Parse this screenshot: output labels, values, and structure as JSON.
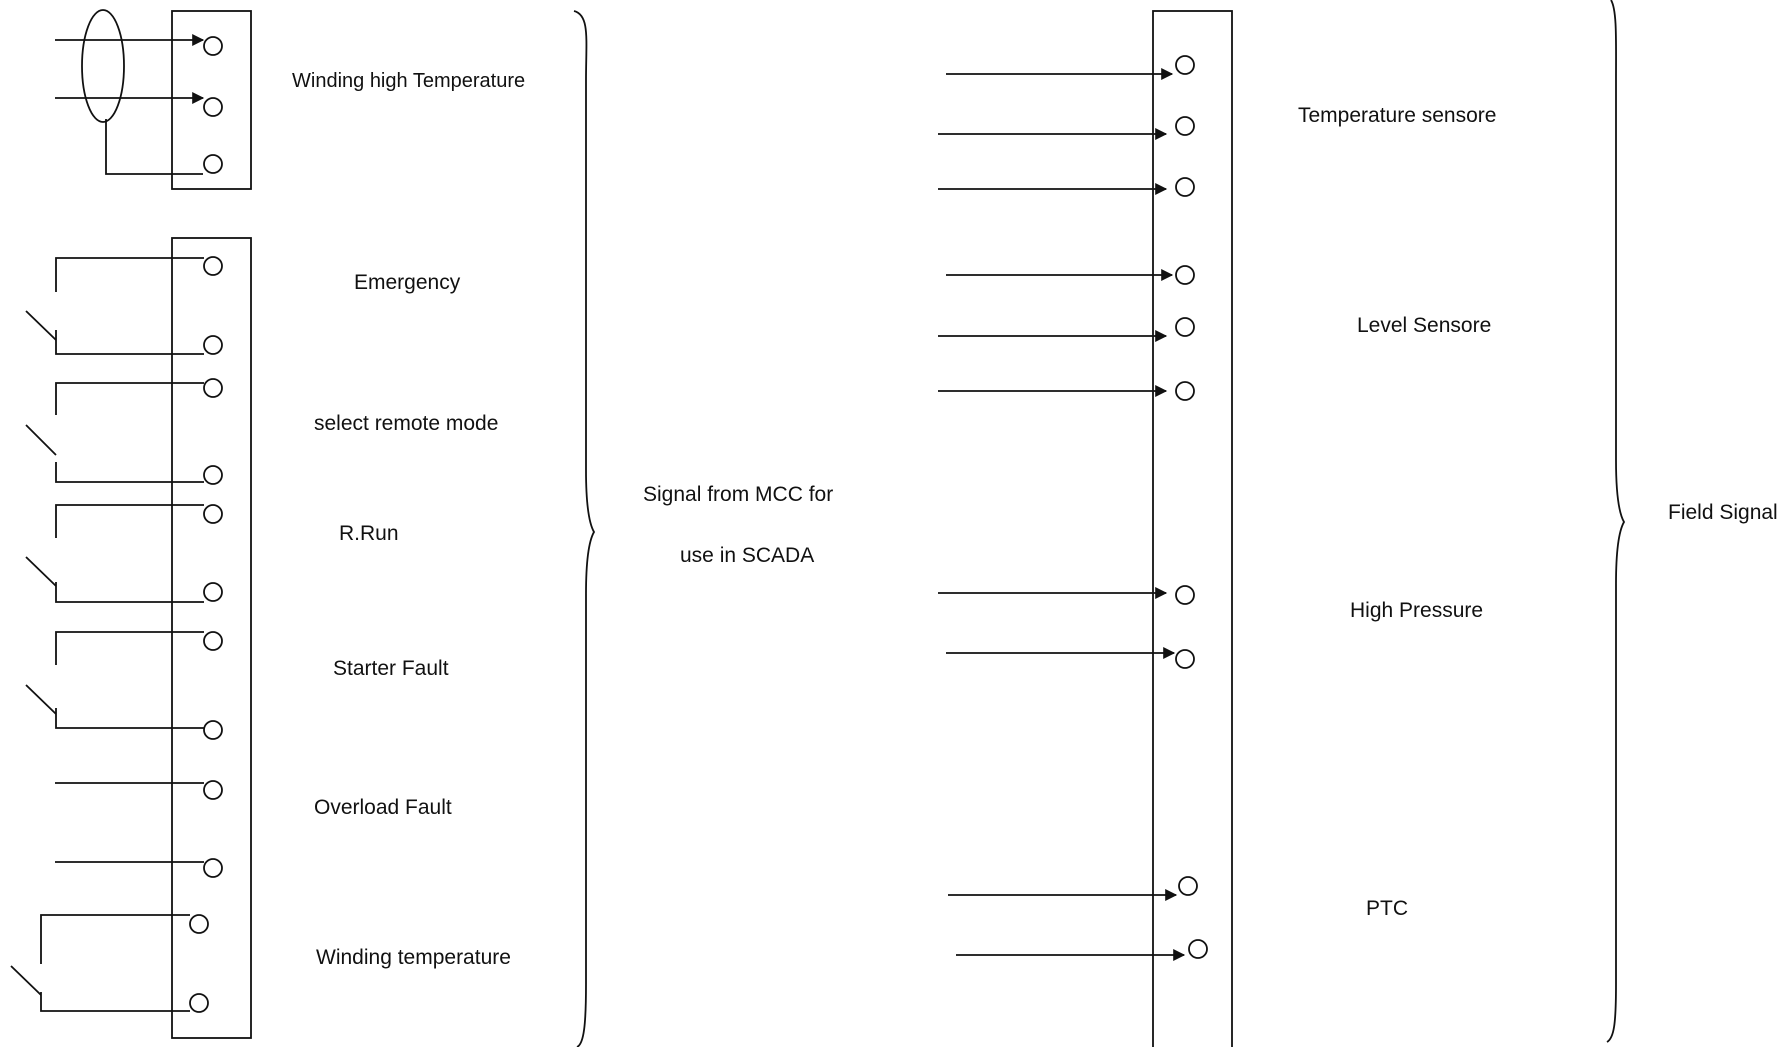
{
  "left_panel": {
    "winding_high_temperature": "Winding  high Temperature",
    "emergency": "Emergency",
    "select_remote_mode": "select remote mode",
    "r_run": "R.Run",
    "starter_fault": "Starter Fault",
    "overload_fault": "Overload Fault",
    "winding_temperature": "Winding temperature"
  },
  "middle": {
    "line1": "Signal from MCC for",
    "line2": "use in SCADA"
  },
  "right_panel": {
    "temperature_sensore": "Temperature  sensore",
    "level_sensore": "Level Sensore",
    "high_pressure": "High  Pressure",
    "ptc": "PTC"
  },
  "field": {
    "label": "Field Signal"
  }
}
